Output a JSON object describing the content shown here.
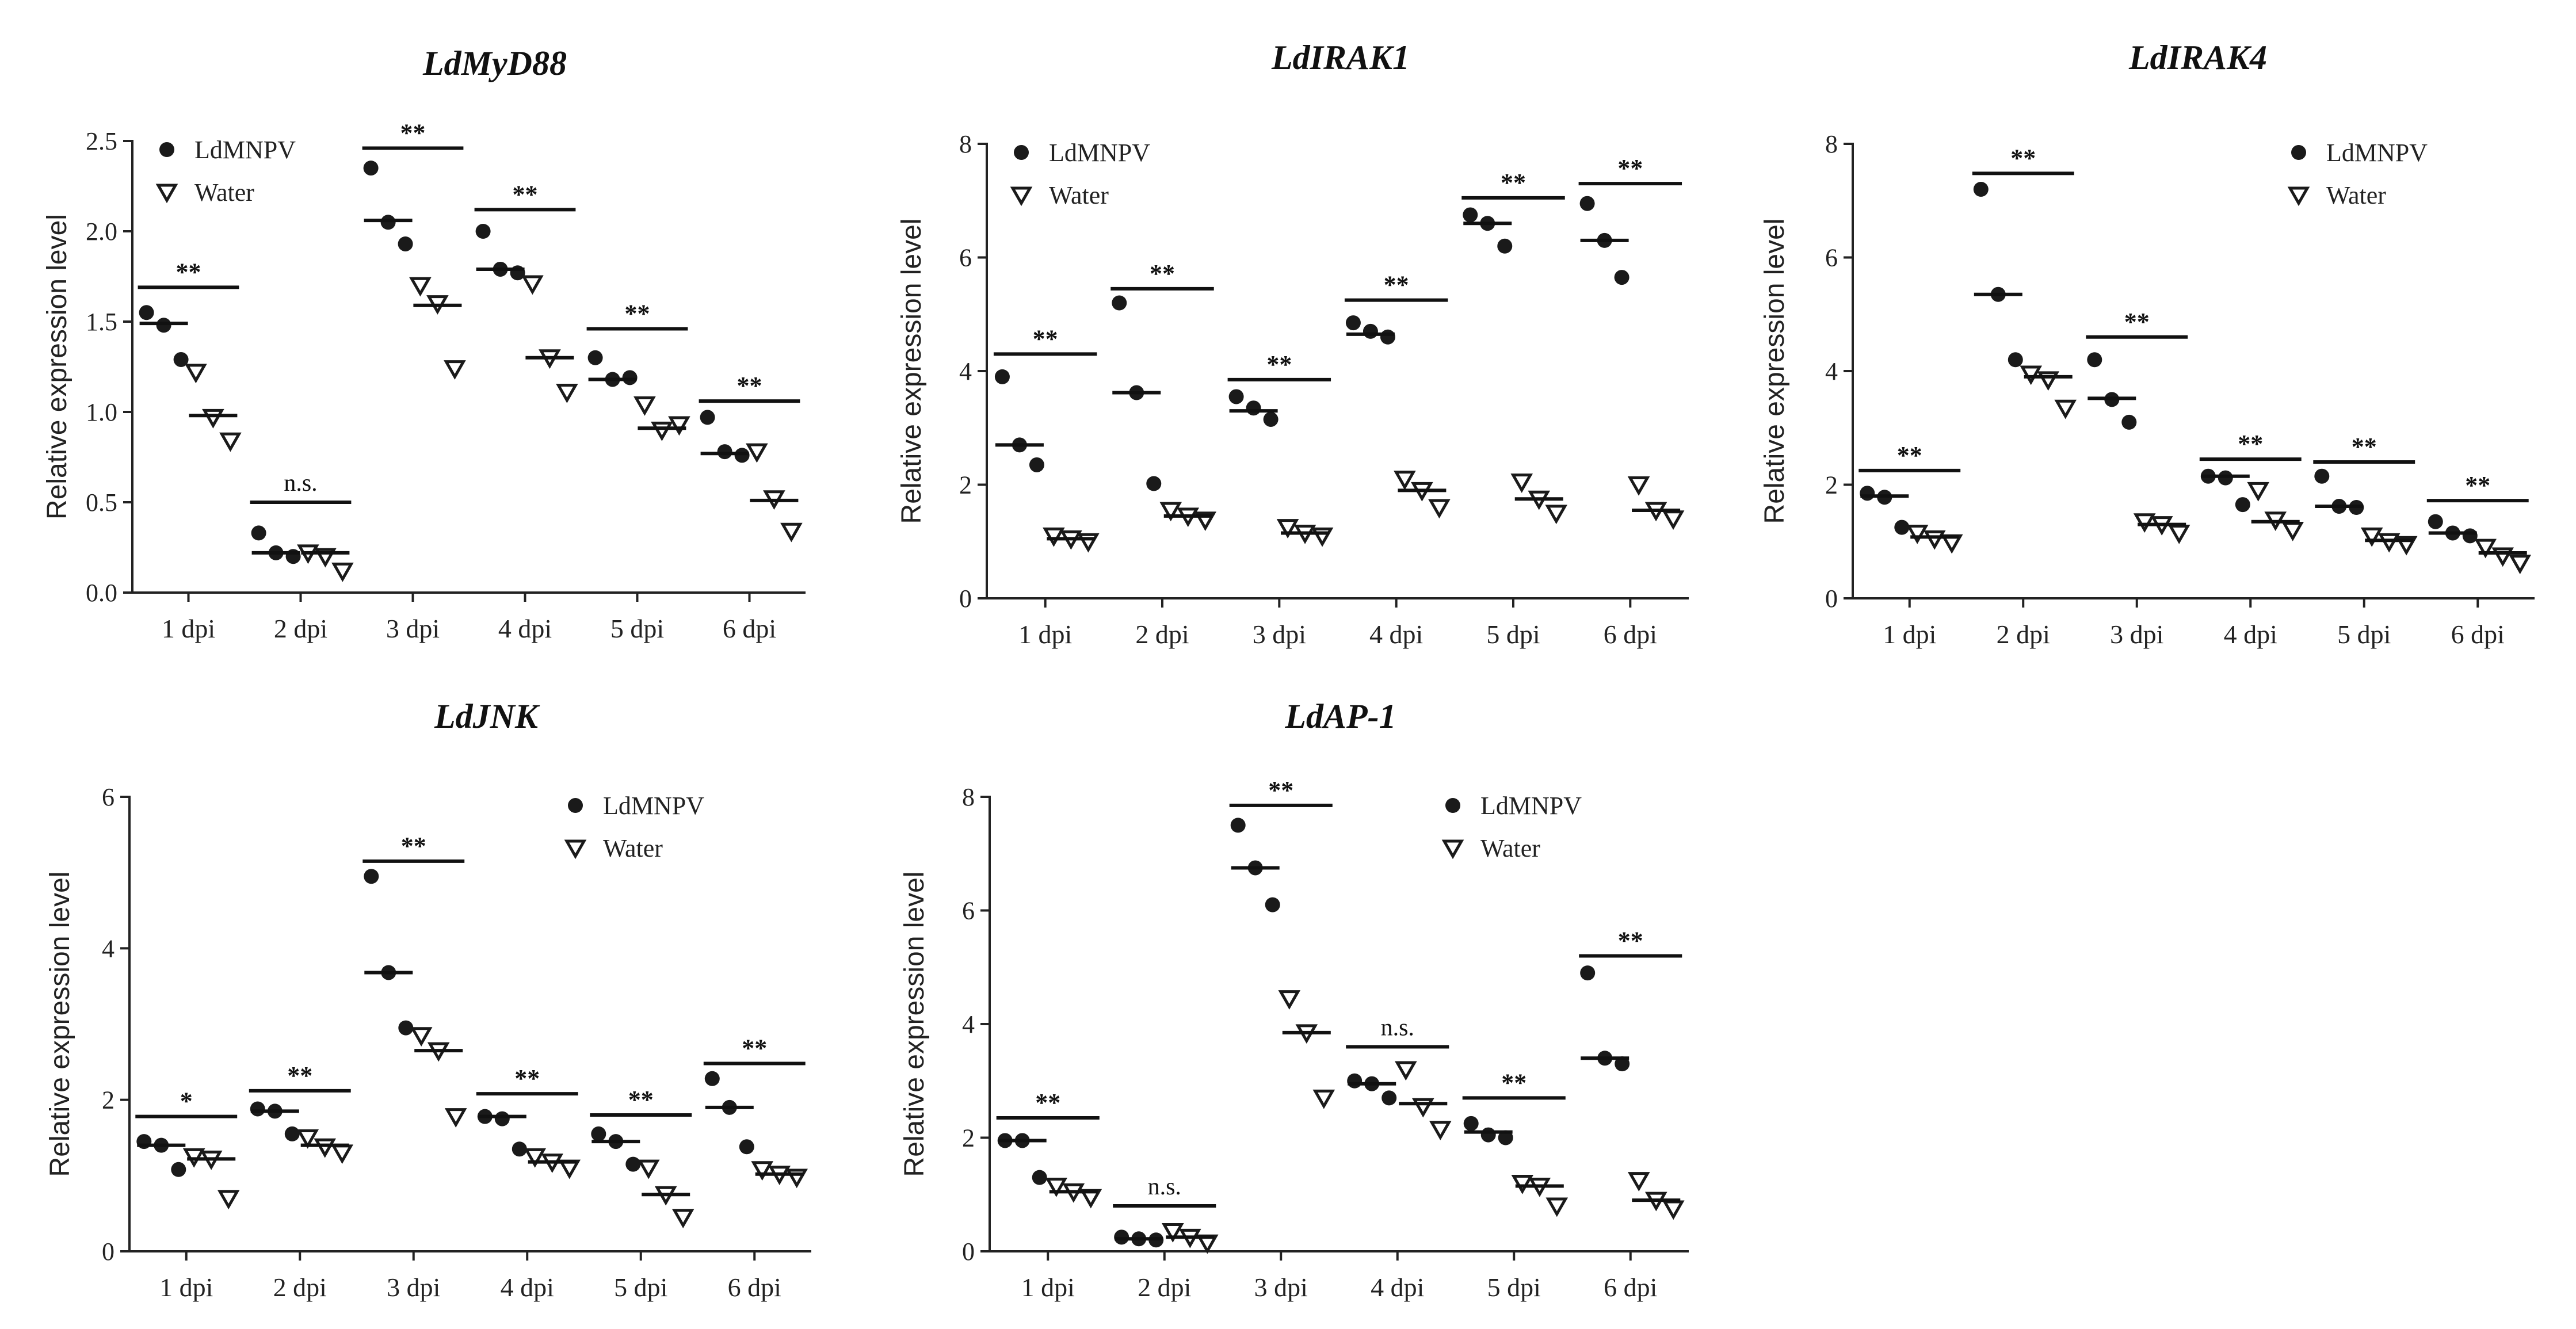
{
  "chart_data": [
    {
      "type": "scatter",
      "title": "LdMyD88",
      "ylabel": "Relative expression level",
      "categories": [
        "1 dpi",
        "2 dpi",
        "3 dpi",
        "4 dpi",
        "5 dpi",
        "6 dpi"
      ],
      "ylim": [
        0,
        2.5
      ],
      "yticks": [
        "0.0",
        "0.5",
        "1.0",
        "1.5",
        "2.0",
        "2.5"
      ],
      "legend": [
        "LdMNPV",
        "Water"
      ],
      "legend_position": "top-left",
      "series": [
        {
          "name": "LdMNPV",
          "points": [
            [
              1.55,
              1.48,
              1.29
            ],
            [
              0.33,
              0.22,
              0.2
            ],
            [
              2.35,
              2.05,
              1.93
            ],
            [
              2.0,
              1.79,
              1.77
            ],
            [
              1.3,
              1.18,
              1.19
            ],
            [
              0.97,
              0.78,
              0.76
            ]
          ],
          "means": [
            1.49,
            0.22,
            2.06,
            1.79,
            1.18,
            0.77
          ]
        },
        {
          "name": "Water",
          "points": [
            [
              1.22,
              0.97,
              0.84
            ],
            [
              0.22,
              0.2,
              0.12
            ],
            [
              1.7,
              1.6,
              1.24
            ],
            [
              1.71,
              1.3,
              1.11
            ],
            [
              1.04,
              0.9,
              0.93
            ],
            [
              0.78,
              0.52,
              0.34
            ]
          ],
          "means": [
            0.98,
            0.22,
            1.59,
            1.3,
            0.91,
            0.51
          ]
        }
      ],
      "significance": [
        "**",
        "n.s.",
        "**",
        "**",
        "**",
        "**"
      ],
      "sig_levels": [
        1.69,
        0.5,
        2.46,
        2.12,
        1.46,
        1.06
      ]
    },
    {
      "type": "scatter",
      "title": "LdIRAK1",
      "ylabel": "Relative expression level",
      "categories": [
        "1 dpi",
        "2 dpi",
        "3 dpi",
        "4 dpi",
        "5 dpi",
        "6 dpi"
      ],
      "ylim": [
        0,
        8
      ],
      "yticks": [
        "0",
        "2",
        "4",
        "6",
        "8"
      ],
      "legend": [
        "LdMNPV",
        "Water"
      ],
      "legend_position": "top-left",
      "series": [
        {
          "name": "LdMNPV",
          "points": [
            [
              3.9,
              2.7,
              2.35
            ],
            [
              5.2,
              3.62,
              2.02
            ],
            [
              3.55,
              3.35,
              3.15
            ],
            [
              4.85,
              4.7,
              4.6
            ],
            [
              6.75,
              6.6,
              6.2
            ],
            [
              6.95,
              6.3,
              5.65
            ]
          ],
          "means": [
            2.7,
            3.62,
            3.3,
            4.65,
            6.6,
            6.3
          ]
        },
        {
          "name": "Water",
          "points": [
            [
              1.1,
              1.05,
              1.0
            ],
            [
              1.55,
              1.45,
              1.38
            ],
            [
              1.25,
              1.15,
              1.1
            ],
            [
              2.1,
              1.9,
              1.6
            ],
            [
              2.05,
              1.75,
              1.5
            ],
            [
              2.0,
              1.55,
              1.4
            ]
          ],
          "means": [
            1.05,
            1.45,
            1.15,
            1.9,
            1.75,
            1.55
          ]
        }
      ],
      "significance": [
        "**",
        "**",
        "**",
        "**",
        "**",
        "**"
      ],
      "sig_levels": [
        4.3,
        5.45,
        3.85,
        5.25,
        7.05,
        7.3
      ]
    },
    {
      "type": "scatter",
      "title": "LdIRAK4",
      "ylabel": "Relative expression level",
      "categories": [
        "1 dpi",
        "2 dpi",
        "3 dpi",
        "4 dpi",
        "5 dpi",
        "6 dpi"
      ],
      "ylim": [
        0,
        8
      ],
      "yticks": [
        "0",
        "2",
        "4",
        "6",
        "8"
      ],
      "legend": [
        "LdMNPV",
        "Water"
      ],
      "legend_position": "top-right",
      "series": [
        {
          "name": "LdMNPV",
          "points": [
            [
              1.85,
              1.78,
              1.25
            ],
            [
              7.2,
              5.35,
              4.2
            ],
            [
              4.2,
              3.5,
              3.1
            ],
            [
              2.15,
              2.12,
              1.65
            ],
            [
              2.15,
              1.62,
              1.6
            ],
            [
              1.35,
              1.15,
              1.1
            ]
          ],
          "means": [
            1.8,
            5.35,
            3.52,
            2.15,
            1.62,
            1.15
          ]
        },
        {
          "name": "Water",
          "points": [
            [
              1.15,
              1.05,
              0.98
            ],
            [
              3.95,
              3.85,
              3.35
            ],
            [
              1.35,
              1.3,
              1.15
            ],
            [
              1.9,
              1.38,
              1.2
            ],
            [
              1.1,
              1.0,
              0.95
            ],
            [
              0.9,
              0.75,
              0.62
            ]
          ],
          "means": [
            1.08,
            3.9,
            1.3,
            1.35,
            1.02,
            0.8
          ]
        }
      ],
      "significance": [
        "**",
        "**",
        "**",
        "**",
        "**",
        "**"
      ],
      "sig_levels": [
        2.25,
        7.48,
        4.6,
        2.45,
        2.4,
        1.72
      ]
    },
    {
      "type": "scatter",
      "title": "LdJNK",
      "ylabel": "Relative expression level",
      "categories": [
        "1 dpi",
        "2 dpi",
        "3 dpi",
        "4 dpi",
        "5 dpi",
        "6 dpi"
      ],
      "ylim": [
        0,
        6
      ],
      "yticks": [
        "0",
        "2",
        "4",
        "6"
      ],
      "legend": [
        "LdMNPV",
        "Water"
      ],
      "legend_position": "top-right",
      "series": [
        {
          "name": "LdMNPV",
          "points": [
            [
              1.45,
              1.4,
              1.08
            ],
            [
              1.88,
              1.85,
              1.55
            ],
            [
              4.95,
              3.68,
              2.95
            ],
            [
              1.78,
              1.75,
              1.35
            ],
            [
              1.55,
              1.45,
              1.15
            ],
            [
              2.28,
              1.9,
              1.38
            ]
          ],
          "means": [
            1.4,
            1.85,
            3.68,
            1.78,
            1.45,
            1.9
          ]
        },
        {
          "name": "Water",
          "points": [
            [
              1.25,
              1.22,
              0.7
            ],
            [
              1.5,
              1.38,
              1.3
            ],
            [
              2.85,
              2.65,
              1.78
            ],
            [
              1.25,
              1.18,
              1.1
            ],
            [
              1.1,
              0.75,
              0.45
            ],
            [
              1.08,
              1.02,
              0.98
            ]
          ],
          "means": [
            1.22,
            1.4,
            2.65,
            1.18,
            0.75,
            1.02
          ]
        }
      ],
      "significance": [
        "*",
        "**",
        "**",
        "**",
        "**",
        "**"
      ],
      "sig_levels": [
        1.78,
        2.12,
        5.15,
        2.08,
        1.8,
        2.48
      ]
    },
    {
      "type": "scatter",
      "title": "LdAP-1",
      "ylabel": "Relative expression level",
      "categories": [
        "1 dpi",
        "2 dpi",
        "3 dpi",
        "4 dpi",
        "5 dpi",
        "6 dpi"
      ],
      "ylim": [
        0,
        8
      ],
      "yticks": [
        "0",
        "2",
        "4",
        "6",
        "8"
      ],
      "legend": [
        "LdMNPV",
        "Water"
      ],
      "legend_position": "top-right",
      "series": [
        {
          "name": "LdMNPV",
          "points": [
            [
              1.95,
              1.95,
              1.3
            ],
            [
              0.25,
              0.22,
              0.2
            ],
            [
              7.5,
              6.75,
              6.1
            ],
            [
              3.0,
              2.95,
              2.7
            ],
            [
              2.25,
              2.05,
              2.0
            ],
            [
              4.9,
              3.4,
              3.3
            ]
          ],
          "means": [
            1.95,
            0.22,
            6.75,
            2.95,
            2.1,
            3.4
          ]
        },
        {
          "name": "Water",
          "points": [
            [
              1.15,
              1.05,
              0.95
            ],
            [
              0.35,
              0.25,
              0.15
            ],
            [
              4.45,
              3.85,
              2.7
            ],
            [
              3.2,
              2.55,
              2.15
            ],
            [
              1.2,
              1.15,
              0.8
            ],
            [
              1.25,
              0.9,
              0.75
            ]
          ],
          "means": [
            1.05,
            0.25,
            3.85,
            2.6,
            1.15,
            0.9
          ]
        }
      ],
      "significance": [
        "**",
        "n.s.",
        "**",
        "n.s.",
        "**",
        "**"
      ],
      "sig_levels": [
        2.35,
        0.8,
        7.85,
        3.6,
        2.7,
        5.2
      ]
    }
  ]
}
